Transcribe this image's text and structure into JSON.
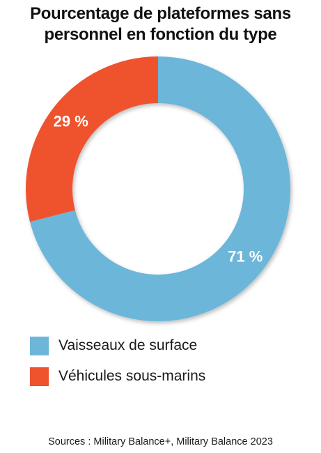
{
  "title_lines": [
    "Pourcentage de plateformes sans",
    "personnel en fonction du type"
  ],
  "chart_data": {
    "type": "pie",
    "donut": true,
    "slices": [
      {
        "label": "Vaisseaux de surface",
        "value": 71,
        "display": "71 %",
        "color": "#6cb6d9"
      },
      {
        "label": "Véhicules sous-marins",
        "value": 29,
        "display": "29 %",
        "color": "#ee532e"
      }
    ],
    "legend_position": "bottom-left"
  },
  "legend": [
    {
      "label": "Vaisseaux de surface",
      "color": "#6cb6d9"
    },
    {
      "label": "Véhicules sous-marins",
      "color": "#ee532e"
    }
  ],
  "source": "Sources : Military Balance+, Military Balance 2023"
}
